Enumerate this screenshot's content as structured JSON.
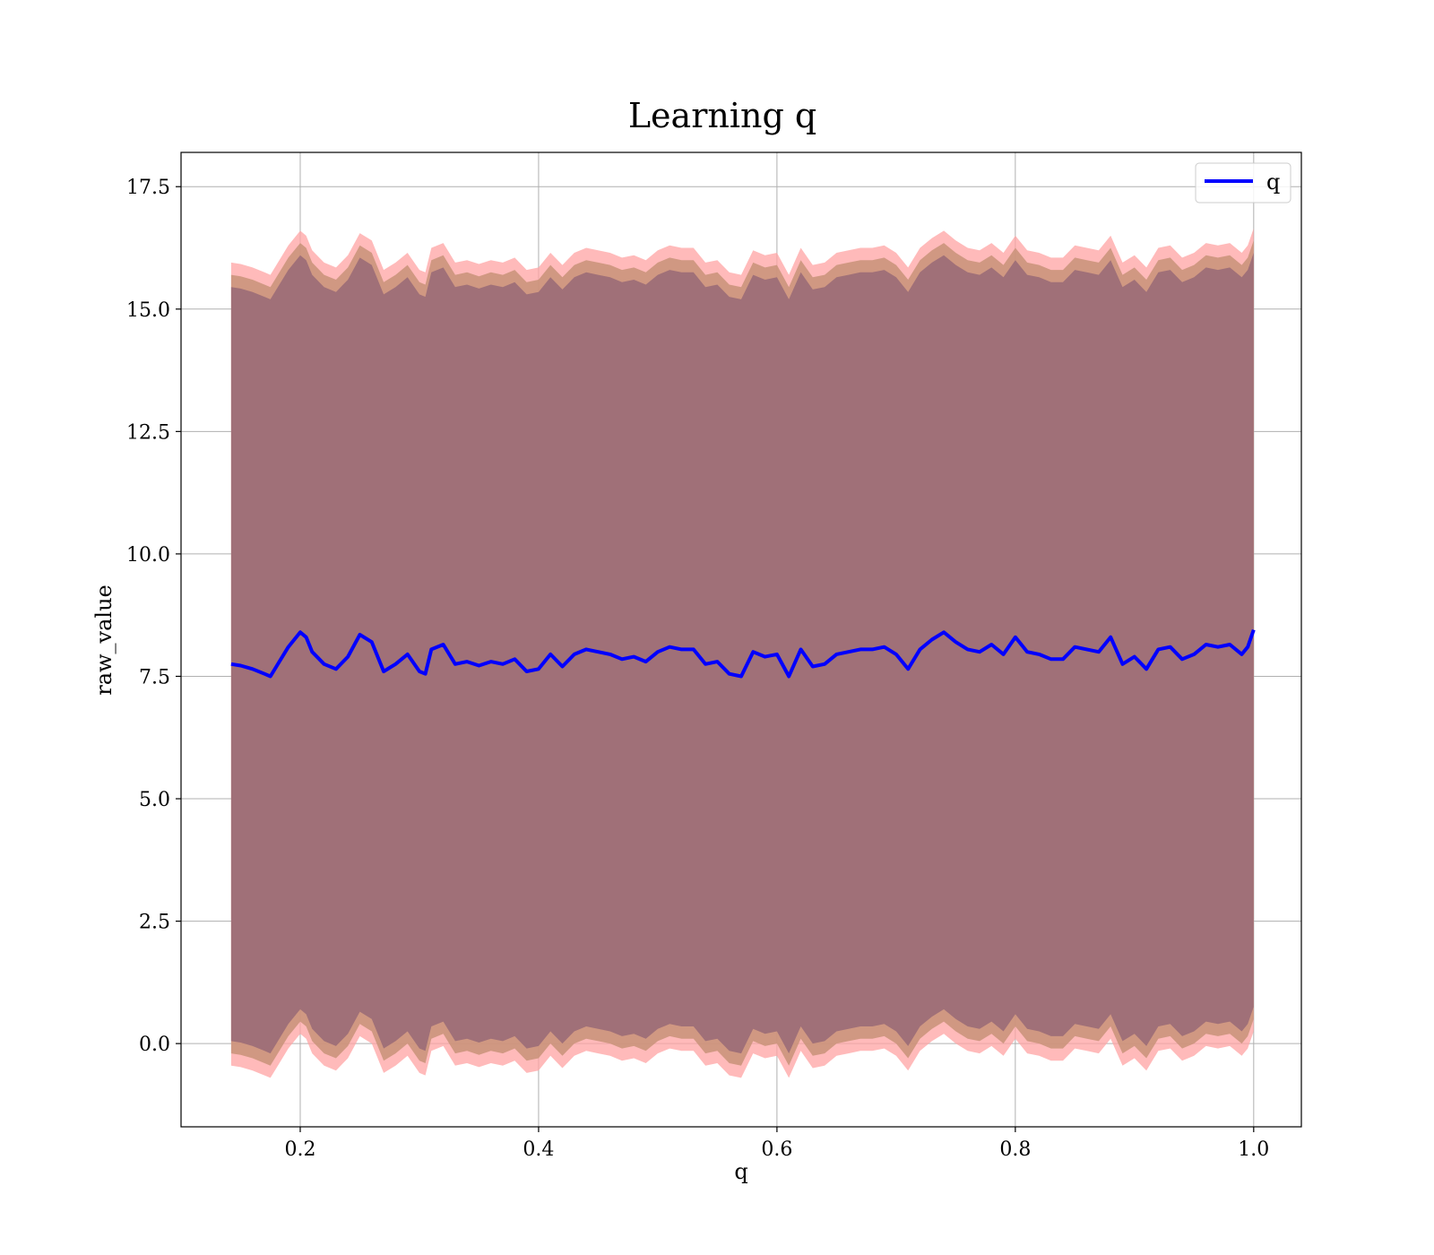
{
  "chart_data": {
    "type": "line",
    "title": "Learning q",
    "xlabel": "q",
    "ylabel": "raw_value",
    "xlim": [
      0.1,
      1.04
    ],
    "ylim": [
      -1.7,
      18.2
    ],
    "x_ticks": [
      "0.2",
      "0.4",
      "0.6",
      "0.8",
      "1.0"
    ],
    "y_ticks": [
      "0.0",
      "2.5",
      "5.0",
      "7.5",
      "10.0",
      "12.5",
      "15.0",
      "17.5"
    ],
    "grid": true,
    "legend": {
      "position": "top-right",
      "entries": [
        "q"
      ]
    },
    "colors": {
      "line": "#0000ff",
      "outer_band": "#ffa3a3",
      "middle_band": "#c89278",
      "inner_band": "#a07078",
      "grid": "#b0b0b0"
    },
    "x": [
      0.142,
      0.15,
      0.16,
      0.17,
      0.175,
      0.18,
      0.19,
      0.2,
      0.205,
      0.21,
      0.22,
      0.23,
      0.24,
      0.25,
      0.26,
      0.27,
      0.28,
      0.29,
      0.3,
      0.305,
      0.31,
      0.32,
      0.33,
      0.34,
      0.35,
      0.36,
      0.37,
      0.38,
      0.39,
      0.4,
      0.41,
      0.42,
      0.43,
      0.44,
      0.45,
      0.46,
      0.47,
      0.48,
      0.49,
      0.5,
      0.51,
      0.52,
      0.53,
      0.54,
      0.55,
      0.56,
      0.57,
      0.58,
      0.59,
      0.6,
      0.61,
      0.62,
      0.63,
      0.64,
      0.65,
      0.66,
      0.67,
      0.68,
      0.69,
      0.7,
      0.71,
      0.72,
      0.73,
      0.74,
      0.75,
      0.76,
      0.77,
      0.78,
      0.79,
      0.8,
      0.81,
      0.82,
      0.83,
      0.84,
      0.85,
      0.86,
      0.87,
      0.88,
      0.89,
      0.9,
      0.91,
      0.92,
      0.93,
      0.94,
      0.95,
      0.96,
      0.97,
      0.98,
      0.99,
      0.995,
      1.0
    ],
    "series": [
      {
        "name": "q",
        "values": [
          7.75,
          7.72,
          7.65,
          7.55,
          7.5,
          7.7,
          8.1,
          8.4,
          8.3,
          8.0,
          7.75,
          7.65,
          7.9,
          8.35,
          8.2,
          7.6,
          7.75,
          7.95,
          7.6,
          7.55,
          8.05,
          8.15,
          7.75,
          7.8,
          7.72,
          7.8,
          7.75,
          7.85,
          7.6,
          7.65,
          7.95,
          7.7,
          7.95,
          8.05,
          8.0,
          7.95,
          7.85,
          7.9,
          7.8,
          8.0,
          8.1,
          8.05,
          8.05,
          7.75,
          7.8,
          7.55,
          7.5,
          8.0,
          7.9,
          7.95,
          7.5,
          8.05,
          7.7,
          7.75,
          7.95,
          8.0,
          8.05,
          8.05,
          8.1,
          7.95,
          7.65,
          8.05,
          8.25,
          8.4,
          8.2,
          8.05,
          8.0,
          8.15,
          7.95,
          8.3,
          8.0,
          7.95,
          7.85,
          7.85,
          8.1,
          8.05,
          8.0,
          8.3,
          7.75,
          7.9,
          7.65,
          8.05,
          8.1,
          7.85,
          7.95,
          8.15,
          8.1,
          8.15,
          7.95,
          8.1,
          8.45
        ]
      }
    ],
    "band_half_widths": {
      "outer": 8.2,
      "middle": 7.95,
      "inner": 7.7
    }
  }
}
